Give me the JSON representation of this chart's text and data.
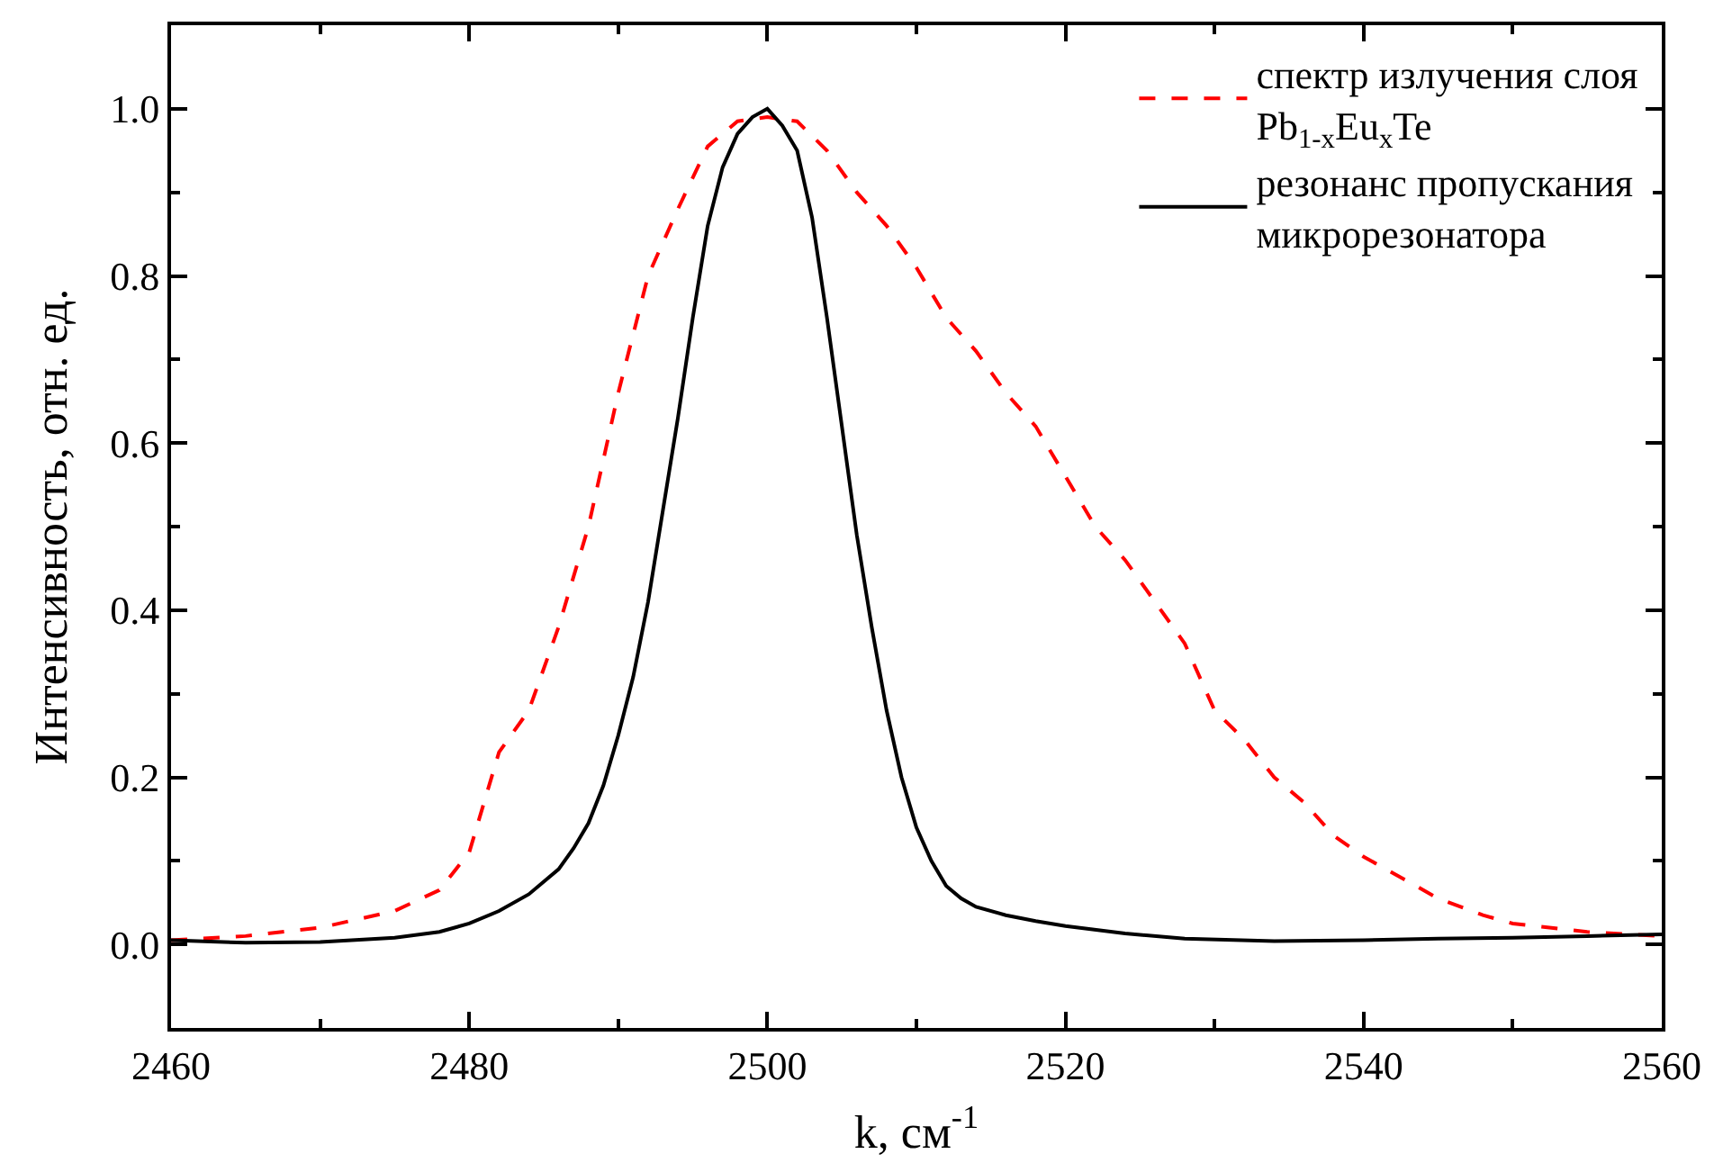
{
  "chart_data": {
    "type": "line",
    "xlabel": "k, см$^{-1}$",
    "ylabel": "Интенсивность, отн. ед.",
    "xlim": [
      2460,
      2560
    ],
    "ylim": [
      -0.1,
      1.1
    ],
    "xticks": [
      2460,
      {
        "value": 2470,
        "label": null
      },
      2480,
      {
        "value": 2490,
        "label": null
      },
      2500,
      {
        "value": 2510,
        "label": null
      },
      2520,
      {
        "value": 2530,
        "label": null
      },
      2540,
      {
        "value": 2550,
        "label": null
      },
      2560
    ],
    "yticks": [
      {
        "value": -0.1,
        "label": null
      },
      {
        "value": 0,
        "label": "0.0"
      },
      {
        "value": 0.1,
        "label": null
      },
      0.2,
      {
        "value": 0.3,
        "label": null
      },
      0.4,
      {
        "value": 0.5,
        "label": null
      },
      0.6,
      {
        "value": 0.7,
        "label": null
      },
      0.8,
      {
        "value": 0.9,
        "label": null
      },
      {
        "value": 1.0,
        "label": "1.0"
      }
    ],
    "legend": "top right",
    "marker": "none",
    "series": [
      {
        "name": "спектр излучения слоя\nPb$_{1-x}$Eu$_{x}$Te",
        "color": "#ff0000",
        "line_style": "dashed",
        "x": [
          2460,
          2465,
          2470,
          2475,
          2478,
          2480,
          2482,
          2484,
          2486,
          2488,
          2490,
          2492,
          2494,
          2496,
          2498,
          2500,
          2502,
          2504,
          2506,
          2508,
          2510,
          2512,
          2514,
          2516,
          2518,
          2520,
          2522,
          2524,
          2526,
          2528,
          2530,
          2532,
          2534,
          2536,
          2538,
          2540,
          2542,
          2545,
          2548,
          2550,
          2555,
          2560
        ],
        "values": [
          0.005,
          0.01,
          0.02,
          0.04,
          0.065,
          0.11,
          0.23,
          0.28,
          0.38,
          0.5,
          0.66,
          0.8,
          0.88,
          0.955,
          0.985,
          0.99,
          0.985,
          0.95,
          0.9,
          0.86,
          0.81,
          0.75,
          0.71,
          0.66,
          0.62,
          0.56,
          0.5,
          0.46,
          0.41,
          0.36,
          0.28,
          0.245,
          0.2,
          0.17,
          0.13,
          0.105,
          0.085,
          0.055,
          0.035,
          0.025,
          0.015,
          0.01
        ]
      },
      {
        "name": "резонанс пропускания\nмикрорезонатора",
        "color": "#000000",
        "line_style": "solid",
        "x": [
          2460,
          2465,
          2470,
          2475,
          2478,
          2480,
          2482,
          2484,
          2486,
          2487,
          2488,
          2489,
          2490,
          2491,
          2492,
          2493,
          2494,
          2495,
          2496,
          2497,
          2498,
          2499,
          2500,
          2501,
          2502,
          2503,
          2504,
          2505,
          2506,
          2507,
          2508,
          2509,
          2510,
          2511,
          2512,
          2513,
          2514,
          2516,
          2518,
          2520,
          2524,
          2528,
          2534,
          2540,
          2545,
          2550,
          2555,
          2560
        ],
        "values": [
          0.005,
          0.002,
          0.003,
          0.008,
          0.015,
          0.025,
          0.04,
          0.06,
          0.09,
          0.115,
          0.145,
          0.19,
          0.25,
          0.32,
          0.41,
          0.52,
          0.63,
          0.75,
          0.86,
          0.93,
          0.97,
          0.99,
          1.0,
          0.98,
          0.95,
          0.87,
          0.75,
          0.62,
          0.49,
          0.38,
          0.28,
          0.2,
          0.14,
          0.1,
          0.07,
          0.055,
          0.045,
          0.035,
          0.028,
          0.022,
          0.013,
          0.007,
          0.004,
          0.005,
          0.007,
          0.008,
          0.01,
          0.012
        ]
      }
    ]
  }
}
